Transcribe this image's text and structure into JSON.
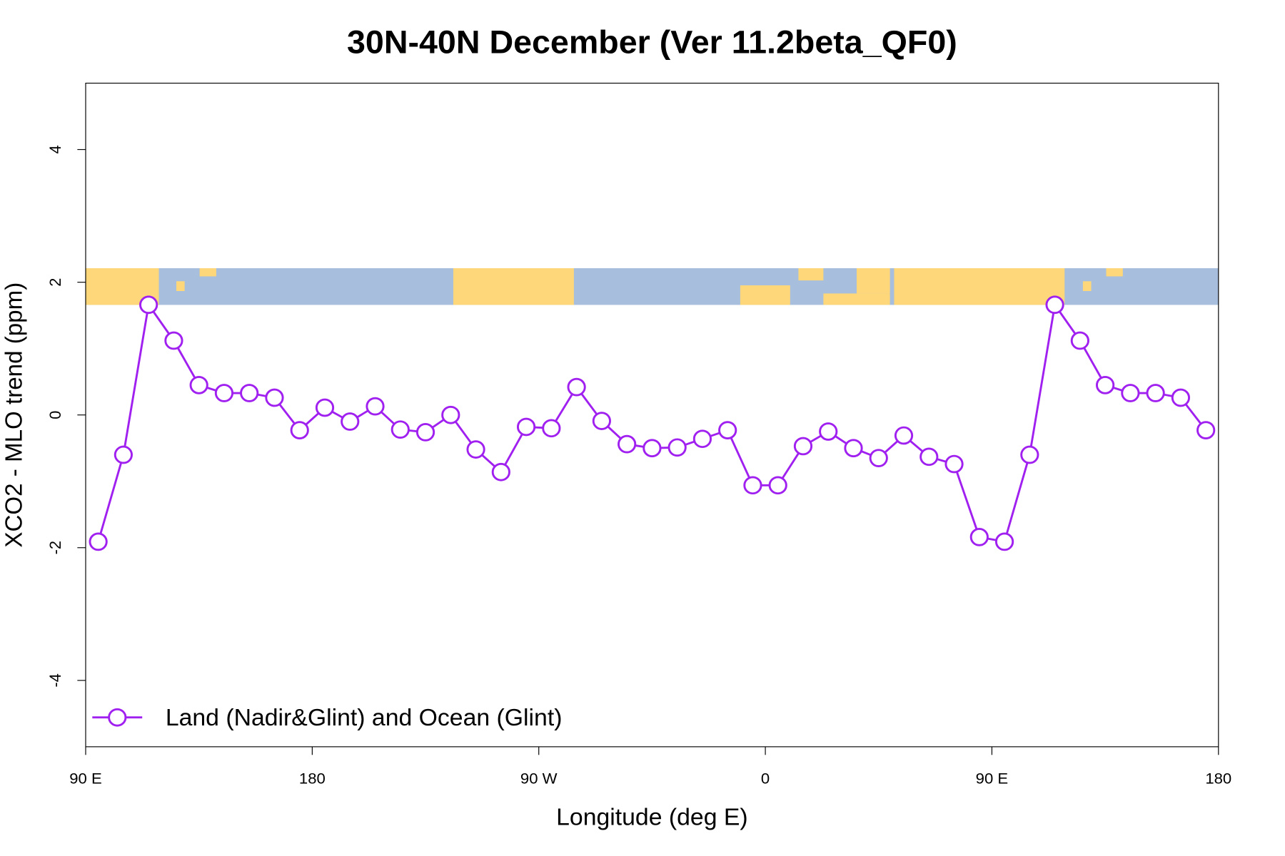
{
  "chart_data": {
    "type": "line",
    "title": "30N-40N December (Ver 11.2beta_QF0)",
    "x_label": "Longitude (deg E)",
    "y_label": "XCO2 - MLO trend (ppm)",
    "xlim": [
      90,
      540
    ],
    "ylim": [
      -5,
      5
    ],
    "xticks": [
      {
        "value": 90,
        "label": "90 E"
      },
      180,
      {
        "value": 270,
        "label": "90 W"
      },
      {
        "value": 360,
        "label": "0"
      },
      {
        "value": 450,
        "label": "90 E"
      },
      {
        "value": 540,
        "label": "180"
      }
    ],
    "yticks": [
      -4,
      -2,
      0,
      2,
      4
    ],
    "legend": "bottom-left",
    "x": [
      95,
      105,
      115,
      125,
      135,
      145,
      155,
      165,
      175,
      185,
      195,
      205,
      215,
      225,
      235,
      245,
      255,
      265,
      275,
      285,
      295,
      305,
      315,
      325,
      335,
      345,
      355,
      365,
      375,
      385,
      395,
      405,
      415,
      425,
      435,
      445,
      455,
      465,
      475,
      485,
      495,
      505,
      515,
      525,
      535
    ],
    "series": [
      {
        "name": "Land (Nadir&Glint) and Ocean (Glint)",
        "color": "#a020f0",
        "values": [
          -1.91,
          -0.6,
          1.66,
          1.12,
          0.45,
          0.33,
          0.33,
          0.26,
          -0.23,
          0.11,
          -0.1,
          0.13,
          -0.22,
          -0.26,
          0.0,
          -0.52,
          -0.86,
          -0.18,
          -0.2,
          0.42,
          -0.09,
          -0.44,
          -0.5,
          -0.49,
          -0.36,
          -0.23,
          -1.06,
          -1.06,
          -0.47,
          -0.25,
          -0.5,
          -0.65,
          -0.31,
          -0.63,
          -0.74,
          -1.84,
          -1.91,
          -0.6,
          1.66,
          1.12,
          0.45,
          0.33,
          0.33,
          0.26,
          -0.23
        ]
      }
    ]
  }
}
